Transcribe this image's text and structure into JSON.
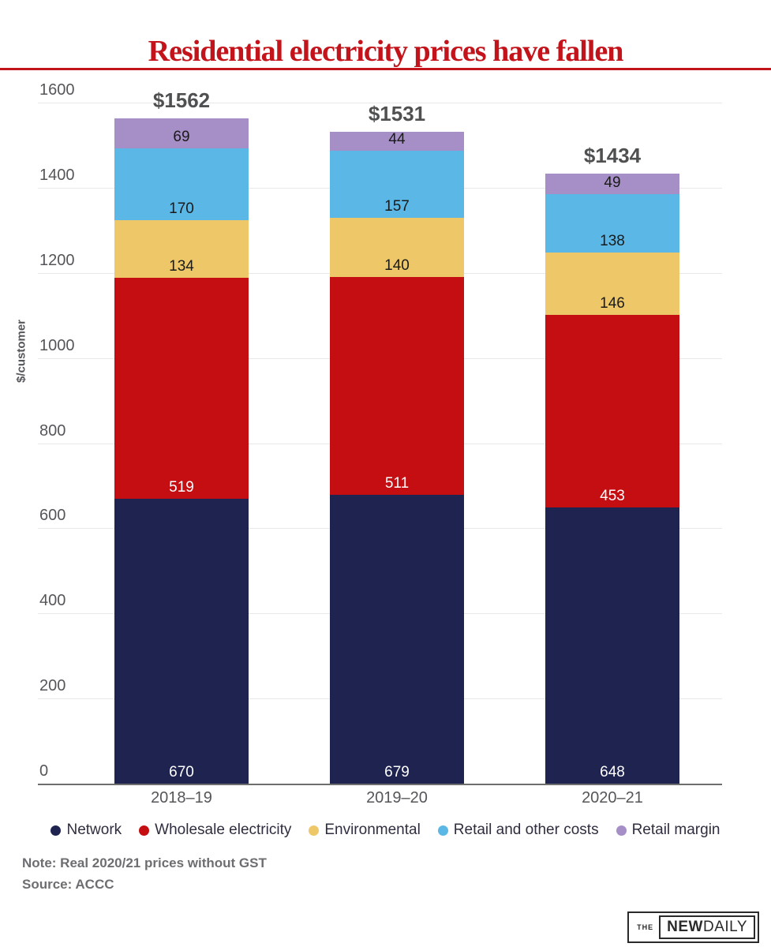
{
  "header": {
    "title": "Residential electricity prices have fallen"
  },
  "theme": {
    "title_red": "#c3141c",
    "grid_color": "#e8e8e8",
    "axis_color": "#6e6e6e",
    "tick_label_color": "#55565a",
    "total_label_color": "#4f5052",
    "legend_text_color": "#2e2e3e",
    "note_color": "#6d6e71",
    "logo_color": "#2a2a2a"
  },
  "chart_data": {
    "type": "bar",
    "stacked": true,
    "title": "Residential electricity prices have fallen",
    "categories": [
      "2018–19",
      "2019–20",
      "2020–21"
    ],
    "series": [
      {
        "name": "Network",
        "color": "#1e2350",
        "label_color": "#ffffff",
        "values": [
          670,
          679,
          648
        ]
      },
      {
        "name": "Wholesale electricity",
        "color": "#c40e12",
        "label_color": "#ffffff",
        "values": [
          519,
          511,
          453
        ]
      },
      {
        "name": "Environmental",
        "color": "#eec868",
        "label_color": "#1a1a1a",
        "values": [
          134,
          140,
          146
        ]
      },
      {
        "name": "Retail and other costs",
        "color": "#5bb7e5",
        "label_color": "#1a1a1a",
        "values": [
          170,
          157,
          138
        ]
      },
      {
        "name": "Retail margin",
        "color": "#a68fc6",
        "label_color": "#1a1a1a",
        "values": [
          69,
          44,
          49
        ]
      }
    ],
    "totals": [
      "$1562",
      "$1531",
      "$1434"
    ],
    "xlabel": "",
    "ylabel": "$/customer",
    "ylim": [
      0,
      1600
    ],
    "yticks": [
      0,
      200,
      400,
      600,
      800,
      1000,
      1200,
      1400,
      1600
    ],
    "grid": true,
    "legend_position": "bottom"
  },
  "notes": {
    "note": "Note: Real 2020/21 prices without GST",
    "source": "Source: ACCC"
  },
  "logo": {
    "the": "THE",
    "new": "NEW",
    "daily": "DAILY"
  }
}
